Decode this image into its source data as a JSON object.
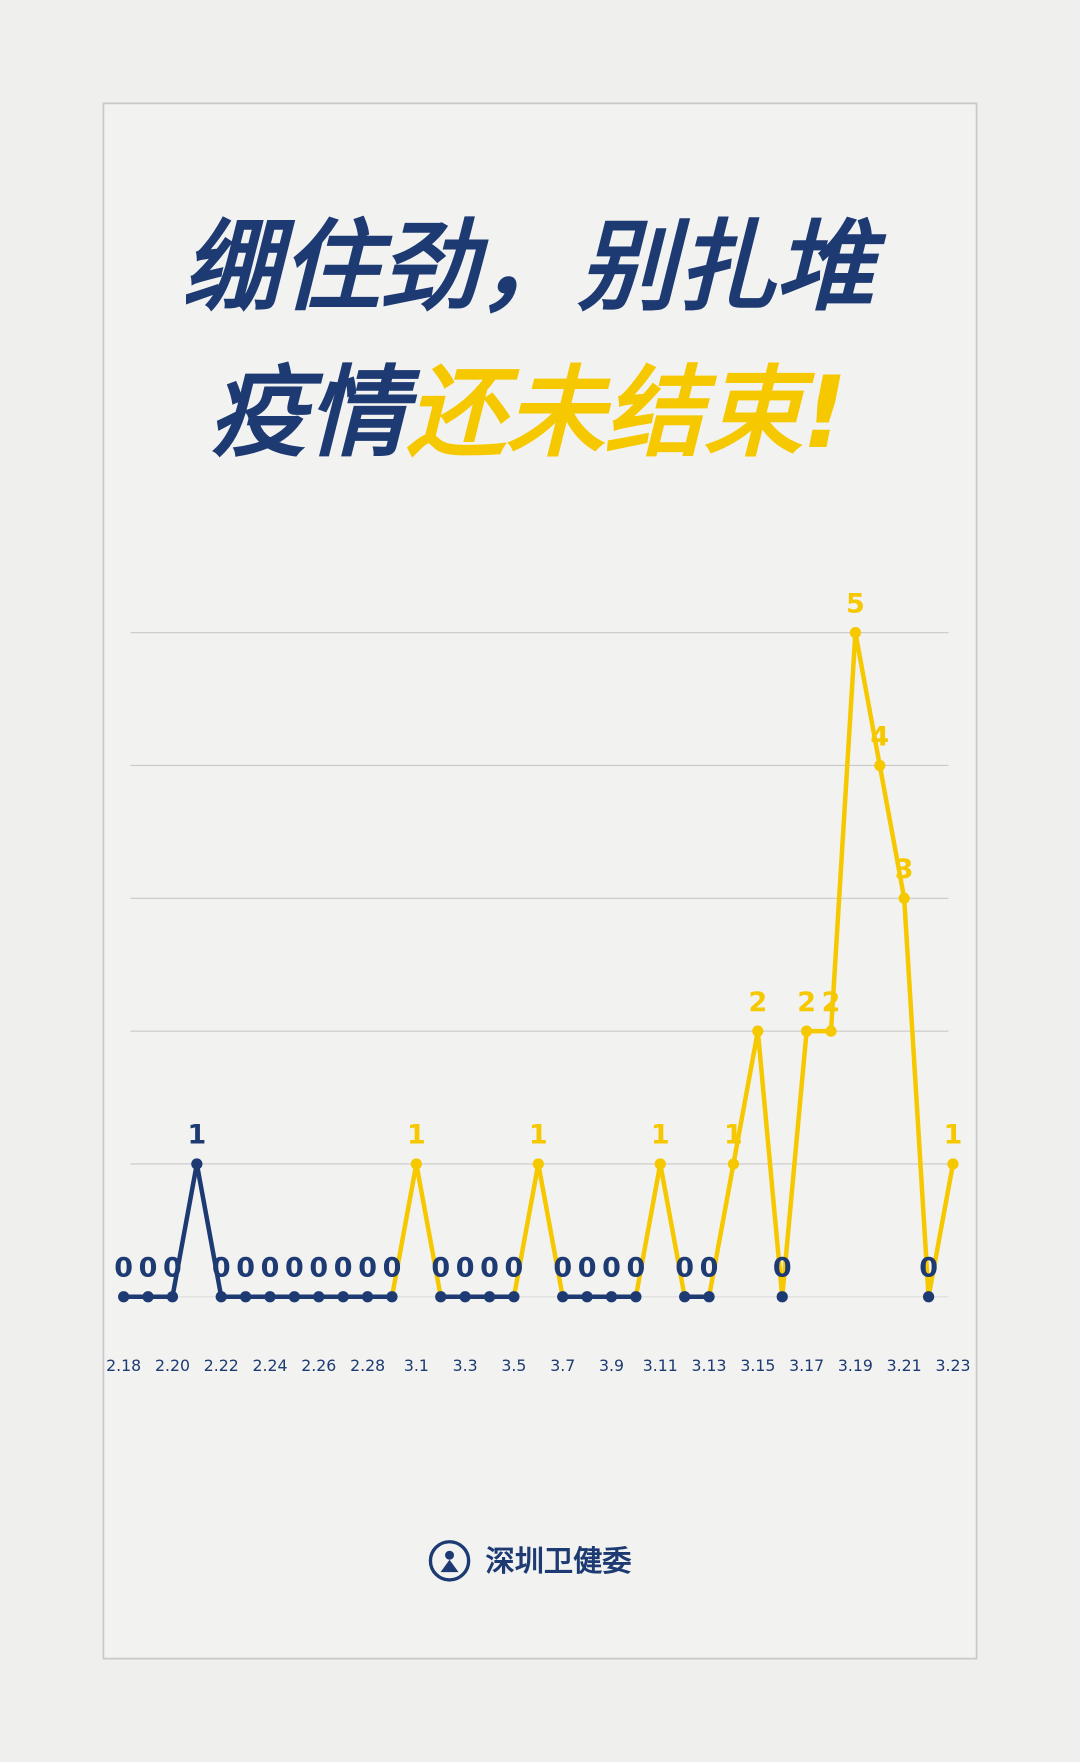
{
  "header": {
    "line1": "绷住劲，别扎堆",
    "line2_dark": "疫情",
    "line2_bright": "还未结束!"
  },
  "chart_data": {
    "type": "line",
    "categories": [
      "2.18",
      null,
      "2.20",
      null,
      "2.22",
      null,
      "2.24",
      null,
      "2.26",
      null,
      "2.28",
      null,
      "3.1",
      null,
      "3.3",
      null,
      "3.5",
      null,
      "3.7",
      null,
      "3.9",
      null,
      "3.11",
      null,
      "3.13",
      null,
      "3.15",
      null,
      "3.17",
      null,
      "3.19",
      null,
      "3.21",
      null,
      "3.23"
    ],
    "values": [
      0,
      0,
      0,
      1,
      0,
      0,
      0,
      0,
      0,
      0,
      0,
      0,
      1,
      0,
      0,
      0,
      0,
      1,
      0,
      0,
      0,
      0,
      1,
      0,
      0,
      1,
      2,
      0,
      2,
      2,
      5,
      4,
      3,
      0,
      1
    ],
    "colors": [
      "#1d3a73",
      "#f6c800"
    ],
    "ylim": [
      0,
      5
    ],
    "yticks": [
      1,
      2,
      3,
      4,
      5
    ],
    "grid": true
  },
  "footer": {
    "org": "深圳卫健委"
  }
}
